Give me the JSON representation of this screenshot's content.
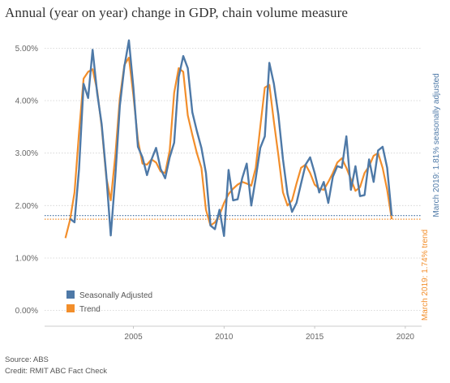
{
  "chart_data": {
    "type": "line",
    "title": "Annual (year on year) change in GDP, chain volume measure",
    "xlabel": "",
    "ylabel": "",
    "x_ticks": [
      "2005",
      "2010",
      "2015",
      "2020"
    ],
    "y_ticks": [
      "0.00%",
      "1.00%",
      "2.00%",
      "3.00%",
      "4.00%",
      "5.00%"
    ],
    "ylim": [
      -0.3,
      5.3
    ],
    "xlim": [
      2000.1,
      2020.9
    ],
    "grid": "horizontal-dotted",
    "legend_position": "bottom-left",
    "series": [
      {
        "name": "Seasonally Adjusted",
        "color": "#4e79a7",
        "x": [
          2001.5,
          2001.75,
          2002.0,
          2002.25,
          2002.5,
          2002.75,
          2003.0,
          2003.25,
          2003.5,
          2003.75,
          2004.0,
          2004.25,
          2004.5,
          2004.75,
          2005.0,
          2005.25,
          2005.5,
          2005.75,
          2006.0,
          2006.25,
          2006.5,
          2006.75,
          2007.0,
          2007.25,
          2007.5,
          2007.75,
          2008.0,
          2008.25,
          2008.5,
          2008.75,
          2009.0,
          2009.25,
          2009.5,
          2009.75,
          2010.0,
          2010.25,
          2010.5,
          2010.75,
          2011.0,
          2011.25,
          2011.5,
          2011.75,
          2012.0,
          2012.25,
          2012.5,
          2012.75,
          2013.0,
          2013.25,
          2013.5,
          2013.75,
          2014.0,
          2014.25,
          2014.5,
          2014.75,
          2015.0,
          2015.25,
          2015.5,
          2015.75,
          2016.0,
          2016.25,
          2016.5,
          2016.75,
          2017.0,
          2017.25,
          2017.5,
          2017.75,
          2018.0,
          2018.25,
          2018.5,
          2018.75,
          2019.0,
          2019.25
        ],
        "values": [
          1.75,
          1.68,
          2.7,
          4.32,
          4.05,
          4.97,
          4.15,
          3.55,
          2.6,
          1.43,
          2.55,
          3.9,
          4.65,
          5.15,
          4.25,
          3.12,
          2.92,
          2.58,
          2.88,
          3.1,
          2.7,
          2.52,
          2.92,
          3.2,
          4.45,
          4.85,
          4.62,
          3.78,
          3.42,
          3.1,
          2.62,
          1.62,
          1.55,
          1.92,
          1.42,
          2.68,
          2.1,
          2.12,
          2.52,
          2.8,
          2.0,
          2.52,
          3.1,
          3.32,
          4.72,
          4.32,
          3.72,
          2.88,
          2.22,
          1.88,
          2.05,
          2.42,
          2.78,
          2.92,
          2.62,
          2.25,
          2.45,
          2.05,
          2.55,
          2.75,
          2.72,
          3.32,
          2.3,
          2.75,
          2.18,
          2.2,
          2.88,
          2.45,
          3.05,
          3.12,
          2.72,
          1.81
        ]
      },
      {
        "name": "Trend",
        "color": "#f28e2b",
        "x": [
          2001.25,
          2001.5,
          2001.75,
          2002.0,
          2002.25,
          2002.5,
          2002.75,
          2003.0,
          2003.25,
          2003.5,
          2003.75,
          2004.0,
          2004.25,
          2004.5,
          2004.75,
          2005.0,
          2005.25,
          2005.5,
          2005.75,
          2006.0,
          2006.25,
          2006.5,
          2006.75,
          2007.0,
          2007.25,
          2007.5,
          2007.75,
          2008.0,
          2008.25,
          2008.5,
          2008.75,
          2009.0,
          2009.25,
          2009.5,
          2009.75,
          2010.0,
          2010.25,
          2010.5,
          2010.75,
          2011.0,
          2011.25,
          2011.5,
          2011.75,
          2012.0,
          2012.25,
          2012.5,
          2012.75,
          2013.0,
          2013.25,
          2013.5,
          2013.75,
          2014.0,
          2014.25,
          2014.5,
          2014.75,
          2015.0,
          2015.25,
          2015.5,
          2015.75,
          2016.0,
          2016.25,
          2016.5,
          2016.75,
          2017.0,
          2017.25,
          2017.5,
          2017.75,
          2018.0,
          2018.25,
          2018.5,
          2018.75,
          2019.0,
          2019.25
        ],
        "values": [
          1.38,
          1.72,
          2.25,
          3.4,
          4.42,
          4.55,
          4.6,
          4.2,
          3.5,
          2.55,
          2.1,
          2.95,
          4.05,
          4.68,
          4.82,
          4.1,
          3.25,
          2.8,
          2.78,
          2.88,
          2.82,
          2.65,
          2.62,
          3.05,
          4.15,
          4.62,
          4.55,
          3.72,
          3.35,
          3.0,
          2.72,
          1.92,
          1.62,
          1.68,
          1.82,
          2.05,
          2.22,
          2.32,
          2.4,
          2.45,
          2.42,
          2.38,
          2.72,
          3.5,
          4.25,
          4.3,
          3.6,
          2.95,
          2.25,
          2.0,
          2.1,
          2.42,
          2.72,
          2.78,
          2.62,
          2.4,
          2.32,
          2.3,
          2.45,
          2.62,
          2.82,
          2.9,
          2.72,
          2.5,
          2.28,
          2.35,
          2.62,
          2.75,
          2.95,
          3.0,
          2.72,
          2.3,
          1.74
        ]
      }
    ],
    "reference_lines": [
      {
        "name": "seasonally-adjusted-reference",
        "value": 1.81,
        "color": "#4e79a7"
      },
      {
        "name": "trend-reference",
        "value": 1.74,
        "color": "#f28e2b"
      }
    ],
    "annotations": [
      {
        "series": "Seasonally Adjusted",
        "text": "March 2019: 1.81% seasonally adjusted",
        "color": "#4e79a7"
      },
      {
        "series": "Trend",
        "text": "March 2019: 1.74% trend",
        "color": "#f28e2b"
      }
    ]
  },
  "footer": {
    "source": "Source: ABS",
    "credit": "Credit: RMIT ABC Fact Check"
  }
}
